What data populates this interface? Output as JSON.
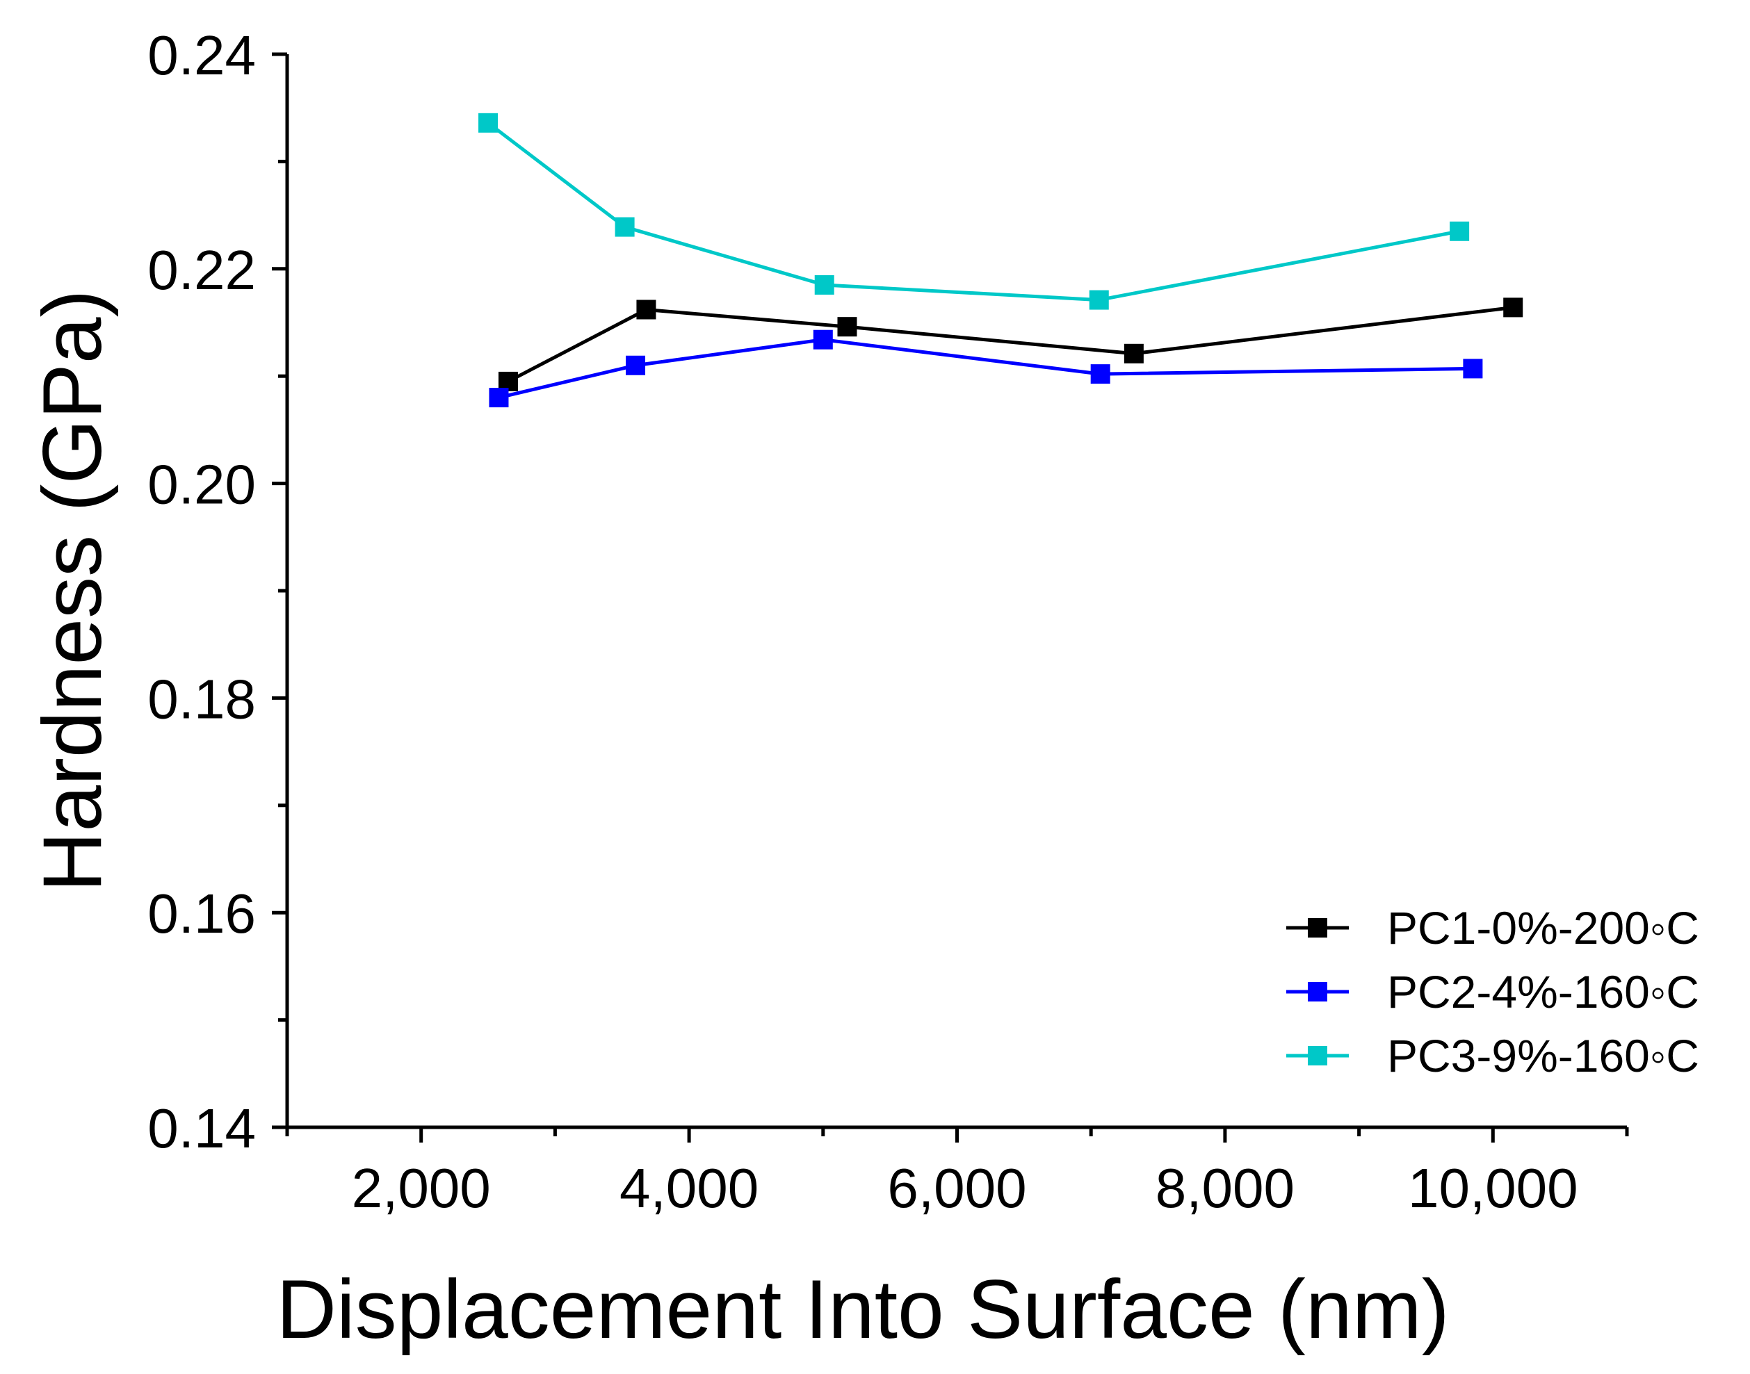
{
  "chart_data": {
    "type": "line",
    "title": "",
    "xlabel": "Displacement Into Surface (nm)",
    "ylabel": "Hardness (GPa)",
    "xlim": [
      1000,
      11000
    ],
    "ylim": [
      0.14,
      0.24
    ],
    "x_ticks": [
      2000,
      4000,
      6000,
      8000,
      10000
    ],
    "x_tick_labels": [
      "2,000",
      "4,000",
      "6,000",
      "8,000",
      "10,000"
    ],
    "x_minor_ticks": [
      1000,
      3000,
      5000,
      7000,
      9000,
      11000
    ],
    "y_ticks": [
      0.14,
      0.16,
      0.18,
      0.2,
      0.22,
      0.24
    ],
    "y_tick_labels": [
      "0.14",
      "0.16",
      "0.18",
      "0.20",
      "0.22",
      "0.24"
    ],
    "y_minor_ticks": [
      0.15,
      0.17,
      0.19,
      0.21,
      0.23
    ],
    "grid": false,
    "legend_position": "bottom-right",
    "marker": "square",
    "series": [
      {
        "name": "PC1-0%-200◦C",
        "color": "#000000",
        "x": [
          2650,
          3680,
          5180,
          7320,
          10150
        ],
        "y": [
          0.2095,
          0.2162,
          0.2146,
          0.2121,
          0.2164
        ]
      },
      {
        "name": "PC2-4%-160◦C",
        "color": "#0000FF",
        "x": [
          2580,
          3600,
          5000,
          7070,
          9850
        ],
        "y": [
          0.208,
          0.211,
          0.2134,
          0.2102,
          0.2107
        ]
      },
      {
        "name": "PC3-9%-160◦C",
        "color": "#00C8C8",
        "x": [
          2500,
          3520,
          5010,
          7060,
          9750
        ],
        "y": [
          0.2336,
          0.2239,
          0.2185,
          0.2171,
          0.2235
        ]
      }
    ]
  }
}
